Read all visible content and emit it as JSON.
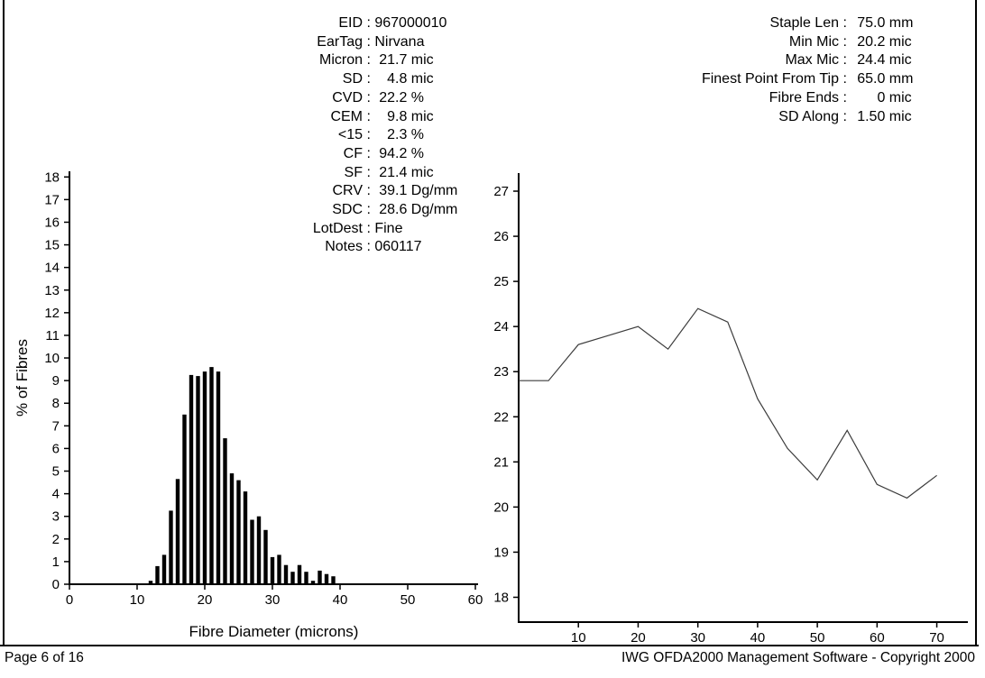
{
  "colors": {
    "text": "#000000",
    "axis": "#000000",
    "bar": "#000000",
    "series_line": "#3c3c3c",
    "background": "#ffffff"
  },
  "info_left": {
    "separator": " : ",
    "rows": [
      {
        "label": "EID",
        "value": "967000010"
      },
      {
        "label": "EarTag",
        "value": "Nirvana"
      },
      {
        "label": "Micron",
        "num": "21.7",
        "unit": "mic"
      },
      {
        "label": "SD",
        "num": "4.8",
        "unit": "mic"
      },
      {
        "label": "CVD",
        "num": "22.2",
        "unit": "%"
      },
      {
        "label": "CEM",
        "num": "9.8",
        "unit": "mic"
      },
      {
        "label": "<15",
        "num": "2.3",
        "unit": "%"
      },
      {
        "label": "CF",
        "num": "94.2",
        "unit": "%"
      },
      {
        "label": "SF",
        "num": "21.4",
        "unit": "mic"
      },
      {
        "label": "CRV",
        "num": "39.1",
        "unit": "Dg/mm"
      },
      {
        "label": "SDC",
        "num": "28.6",
        "unit": "Dg/mm"
      },
      {
        "label": "LotDest",
        "value": "Fine"
      },
      {
        "label": "Notes",
        "value": "060117"
      }
    ]
  },
  "info_right": {
    "separator": " : ",
    "rows": [
      {
        "label": "Staple Len",
        "num": "75.0",
        "unit": "mm"
      },
      {
        "label": "Min Mic",
        "num": "20.2",
        "unit": "mic"
      },
      {
        "label": "Max Mic",
        "num": "24.4",
        "unit": "mic"
      },
      {
        "label": "Finest Point From Tip",
        "num": "65.0",
        "unit": "mm"
      },
      {
        "label": "Fibre Ends",
        "num": "0",
        "unit": "mic"
      },
      {
        "label": "SD Along",
        "num": "1.50",
        "unit": "mic"
      }
    ]
  },
  "footer": {
    "page": "Page 6 of 16",
    "copyright": "IWG OFDA2000 Management Software - Copyright 2000"
  },
  "chart_data": [
    {
      "type": "bar",
      "name": "fibre-diameter-histogram",
      "xlabel": "Fibre Diameter (microns)",
      "ylabel": "% of Fibres",
      "xlim": [
        0,
        60.4
      ],
      "ylim": [
        0,
        18.25
      ],
      "x_ticks": [
        0,
        10,
        20,
        30,
        40,
        50,
        60
      ],
      "y_ticks": [
        0,
        1,
        2,
        3,
        4,
        5,
        6,
        7,
        8,
        9,
        10,
        11,
        12,
        13,
        14,
        15,
        16,
        17,
        18
      ],
      "x": [
        12,
        13,
        14,
        15,
        16,
        17,
        18,
        19,
        20,
        21,
        22,
        23,
        24,
        25,
        26,
        27,
        28,
        29,
        30,
        31,
        32,
        33,
        34,
        35,
        36,
        37,
        38,
        39
      ],
      "values": [
        0.15,
        0.8,
        1.3,
        3.25,
        4.65,
        7.5,
        9.25,
        9.2,
        9.4,
        9.6,
        9.4,
        6.45,
        4.9,
        4.6,
        4.1,
        2.85,
        3.0,
        2.4,
        1.2,
        1.3,
        0.85,
        0.55,
        0.85,
        0.55,
        0.15,
        0.6,
        0.45,
        0.35
      ],
      "grid": false,
      "legend": false
    },
    {
      "type": "line",
      "name": "micron-along-staple-profile",
      "xlabel": "",
      "ylabel": "",
      "xlim": [
        0,
        75.2
      ],
      "ylim": [
        17.45,
        27.4
      ],
      "x_ticks": [
        10,
        20,
        30,
        40,
        50,
        60,
        70
      ],
      "y_ticks": [
        18,
        19,
        20,
        21,
        22,
        23,
        24,
        25,
        26,
        27
      ],
      "x": [
        0,
        5,
        10,
        15,
        20,
        25,
        30,
        35,
        40,
        45,
        50,
        55,
        60,
        65,
        70
      ],
      "values": [
        22.8,
        22.8,
        23.6,
        23.8,
        24.0,
        23.5,
        24.4,
        24.1,
        22.4,
        21.3,
        20.6,
        21.7,
        20.5,
        20.2,
        20.7
      ],
      "grid": false,
      "legend": false
    }
  ]
}
